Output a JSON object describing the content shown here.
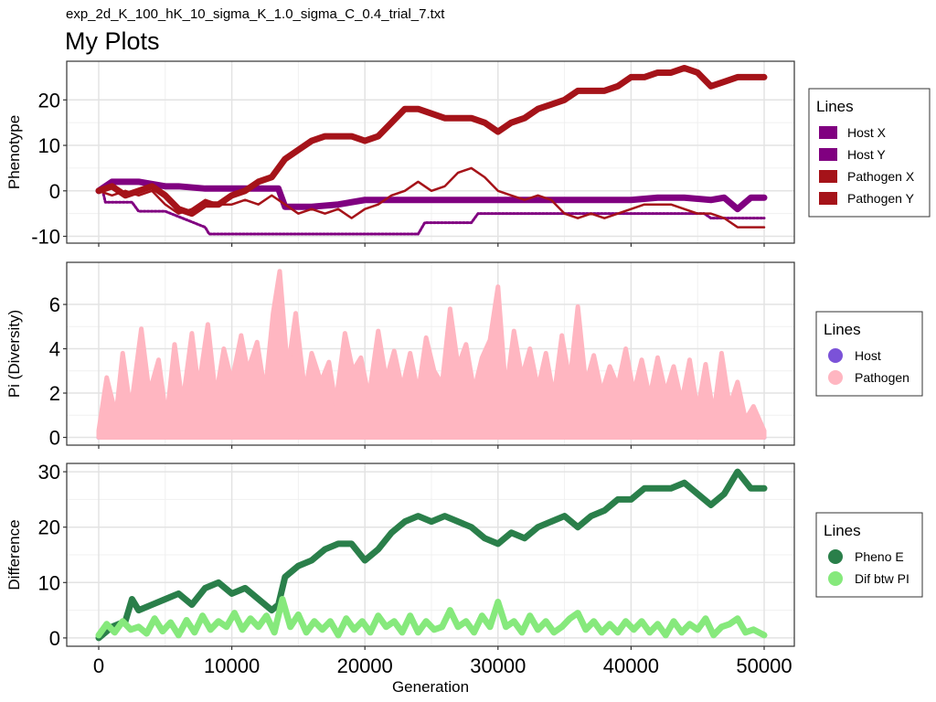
{
  "figure": {
    "subtitle": "exp_2d_K_100_hK_10_sigma_K_1.0_sigma_C_0.4_trial_7.txt",
    "title": "My Plots",
    "xlabel": "Generation"
  },
  "chart_data": [
    {
      "type": "line",
      "ylabel": "Phenotype",
      "x_range": [
        0,
        50000
      ],
      "ylim": [
        -11.5,
        28.5
      ],
      "x_ticks": [
        0,
        10000,
        20000,
        30000,
        40000,
        50000
      ],
      "y_ticks": [
        -10,
        0,
        10,
        20
      ],
      "y_tick_labels": [
        "-10",
        "0",
        "10",
        "20"
      ],
      "legend": {
        "title": "Lines",
        "position": "right",
        "marker": "square"
      },
      "series": [
        {
          "name": "Host X",
          "color": "#800080",
          "style": "thick",
          "x": [
            0,
            1000,
            3000,
            5000,
            6000,
            8000,
            10000,
            12000,
            13500,
            14000,
            16000,
            18000,
            20000,
            22000,
            25000,
            28000,
            30000,
            32000,
            35000,
            38000,
            40000,
            42000,
            44000,
            46000,
            47000,
            48000,
            49000,
            50000
          ],
          "y": [
            0,
            2,
            2,
            1,
            1,
            0.5,
            0.5,
            0.5,
            0.5,
            -3.5,
            -3.5,
            -3,
            -2,
            -2,
            -2,
            -2,
            -2,
            -2,
            -2,
            -2,
            -2,
            -1.5,
            -1.5,
            -2,
            -1.5,
            -4,
            -1.5,
            -1.5
          ]
        },
        {
          "name": "Host Y",
          "color": "#800080",
          "style": "dotted",
          "x": [
            0,
            300,
            500,
            2500,
            3000,
            5000,
            8000,
            8300,
            10000,
            14000,
            20000,
            24000,
            24500,
            28000,
            28500,
            32000,
            36000,
            40000,
            44000,
            45500,
            46000,
            50000
          ],
          "y": [
            0,
            0,
            -2.5,
            -2.5,
            -4.5,
            -4.5,
            -8,
            -9.5,
            -9.5,
            -9.5,
            -9.5,
            -9.5,
            -7,
            -7,
            -5,
            -5,
            -5,
            -5,
            -5,
            -5,
            -6,
            -6
          ]
        },
        {
          "name": "Pathogen X",
          "color": "#a51319",
          "style": "thick",
          "x": [
            0,
            1000,
            2000,
            3000,
            4000,
            5000,
            6000,
            7000,
            8000,
            9000,
            10000,
            11000,
            12000,
            13000,
            14000,
            15000,
            16000,
            17000,
            18000,
            19000,
            20000,
            21000,
            22000,
            23000,
            24000,
            25000,
            26000,
            27000,
            28000,
            29000,
            30000,
            31000,
            32000,
            33000,
            34000,
            35000,
            36000,
            37000,
            38000,
            39000,
            40000,
            41000,
            42000,
            43000,
            44000,
            45000,
            46000,
            47000,
            48000,
            49000,
            50000
          ],
          "y": [
            0,
            1,
            -1,
            0,
            1,
            -1,
            -4,
            -5,
            -3,
            -3,
            -1,
            0,
            2,
            3,
            7,
            9,
            11,
            12,
            12,
            12,
            11,
            12,
            15,
            18,
            18,
            17,
            16,
            16,
            16,
            15,
            13,
            15,
            16,
            18,
            19,
            20,
            22,
            22,
            22,
            23,
            25,
            25,
            26,
            26,
            27,
            26,
            23,
            24,
            25,
            25,
            25
          ]
        },
        {
          "name": "Pathogen Y",
          "color": "#a51319",
          "style": "thin",
          "x": [
            0,
            1000,
            2000,
            3000,
            4000,
            5000,
            6000,
            7000,
            8000,
            9000,
            10000,
            11000,
            12000,
            13000,
            14000,
            15000,
            16000,
            17000,
            18000,
            19000,
            20000,
            21000,
            22000,
            23000,
            24000,
            25000,
            26000,
            27000,
            28000,
            29000,
            30000,
            31000,
            32000,
            33000,
            34000,
            35000,
            36000,
            37000,
            38000,
            39000,
            40000,
            41000,
            42000,
            43000,
            44000,
            45000,
            46000,
            47000,
            48000,
            49000,
            50000
          ],
          "y": [
            0,
            -1,
            0,
            -1,
            0,
            -3,
            -5,
            -4,
            -2,
            -3,
            -3,
            -2,
            -3,
            -1,
            -3,
            -5,
            -4,
            -5,
            -4,
            -6,
            -4,
            -3,
            -1,
            0,
            2,
            0,
            1,
            4,
            5,
            3,
            0,
            -1,
            -2,
            -1,
            -2,
            -5,
            -6,
            -5,
            -6,
            -5,
            -4,
            -3,
            -3,
            -3,
            -4,
            -5,
            -5,
            -6,
            -8,
            -8,
            -8
          ]
        }
      ]
    },
    {
      "type": "line",
      "ylabel": "Pi (Diversity)",
      "x_range": [
        0,
        50000
      ],
      "ylim": [
        -0.35,
        7.9
      ],
      "x_ticks": [
        0,
        10000,
        20000,
        30000,
        40000,
        50000
      ],
      "y_ticks": [
        0,
        2,
        4,
        6
      ],
      "y_tick_labels": [
        "0",
        "2",
        "4",
        "6"
      ],
      "legend": {
        "title": "Lines",
        "position": "right",
        "marker": "circle"
      },
      "series": [
        {
          "name": "Host",
          "color": "#7b52d8",
          "style": "filled",
          "x": [
            0,
            2500,
            5000,
            7500,
            10000,
            12500,
            15000,
            17500,
            20000,
            22500,
            25000,
            27500,
            30000,
            32500,
            35000,
            37500,
            40000,
            42500,
            45000,
            47500,
            50000
          ],
          "y": [
            0.2,
            0.4,
            0.35,
            0.4,
            0.4,
            0.45,
            0.35,
            0.45,
            0.4,
            0.35,
            0.45,
            0.4,
            0.45,
            0.35,
            0.35,
            0.4,
            0.35,
            0.35,
            0.4,
            0.5,
            0.15
          ]
        },
        {
          "name": "Pathogen",
          "color": "#ffb6c1",
          "style": "filled",
          "x": [
            0,
            600,
            1300,
            1800,
            2400,
            3200,
            3800,
            4500,
            5100,
            5700,
            6300,
            7000,
            7500,
            8200,
            8800,
            9400,
            10000,
            10700,
            11200,
            11900,
            12500,
            13100,
            13600,
            14200,
            14800,
            15500,
            16000,
            16700,
            17300,
            17800,
            18500,
            19100,
            19700,
            20300,
            21000,
            21600,
            22200,
            22800,
            23400,
            24000,
            24600,
            25200,
            25800,
            26400,
            27000,
            27600,
            28200,
            28800,
            29400,
            30000,
            30600,
            31200,
            31800,
            32400,
            33000,
            33600,
            34200,
            34800,
            35400,
            36000,
            36600,
            37200,
            37800,
            38400,
            39000,
            39600,
            40200,
            40800,
            41400,
            42000,
            42600,
            43200,
            43800,
            44400,
            45000,
            45600,
            46200,
            46800,
            47400,
            48000,
            48600,
            49200,
            50000
          ],
          "y": [
            0.3,
            2.7,
            1.0,
            3.8,
            1.2,
            4.9,
            2.0,
            3.5,
            0.8,
            4.2,
            1.5,
            4.7,
            2.2,
            5.1,
            1.8,
            4.0,
            2.5,
            4.6,
            3.0,
            4.3,
            2.0,
            5.6,
            7.5,
            3.0,
            5.6,
            2.0,
            3.8,
            2.5,
            3.4,
            1.5,
            4.7,
            3.0,
            3.6,
            1.8,
            4.8,
            2.6,
            3.9,
            2.2,
            3.8,
            2.0,
            4.5,
            3.0,
            2.4,
            5.8,
            3.2,
            4.2,
            2.1,
            3.6,
            4.4,
            6.8,
            2.0,
            4.8,
            2.7,
            4.0,
            2.2,
            3.8,
            1.8,
            4.6,
            2.5,
            5.9,
            2.4,
            3.7,
            2.0,
            3.2,
            2.3,
            4.0,
            2.0,
            3.5,
            1.8,
            3.6,
            2.0,
            3.2,
            1.6,
            3.5,
            1.2,
            3.3,
            1.0,
            3.8,
            1.4,
            2.5,
            0.8,
            1.4,
            0.3
          ]
        }
      ]
    },
    {
      "type": "line",
      "ylabel": "Difference",
      "xlabel": "Generation",
      "x_range": [
        0,
        50000
      ],
      "ylim": [
        -1.5,
        31.5
      ],
      "x_ticks": [
        0,
        10000,
        20000,
        30000,
        40000,
        50000
      ],
      "x_tick_labels": [
        "0",
        "10000",
        "20000",
        "30000",
        "40000",
        "50000"
      ],
      "y_ticks": [
        0,
        10,
        20,
        30
      ],
      "y_tick_labels": [
        "0",
        "10",
        "20",
        "30"
      ],
      "legend": {
        "title": "Lines",
        "position": "right",
        "marker": "circle"
      },
      "series": [
        {
          "name": "Pheno E",
          "color": "#2a7f4a",
          "style": "thick",
          "x": [
            0,
            1000,
            2000,
            2500,
            3000,
            4000,
            5000,
            6000,
            7000,
            8000,
            9000,
            10000,
            11000,
            12000,
            13000,
            13500,
            14000,
            15000,
            16000,
            17000,
            18000,
            19000,
            20000,
            21000,
            22000,
            23000,
            24000,
            25000,
            26000,
            27000,
            28000,
            29000,
            30000,
            31000,
            32000,
            33000,
            34000,
            35000,
            36000,
            37000,
            38000,
            39000,
            40000,
            41000,
            42000,
            43000,
            44000,
            45000,
            46000,
            47000,
            48000,
            49000,
            50000
          ],
          "y": [
            0,
            2,
            3,
            7,
            5,
            6,
            7,
            8,
            6,
            9,
            10,
            8,
            9,
            7,
            5,
            6,
            11,
            13,
            14,
            16,
            17,
            17,
            14,
            16,
            19,
            21,
            22,
            21,
            22,
            21,
            20,
            18,
            17,
            19,
            18,
            20,
            21,
            22,
            20,
            22,
            23,
            25,
            25,
            27,
            27,
            27,
            28,
            26,
            24,
            26,
            30,
            27,
            27
          ]
        },
        {
          "name": "Dif btw PI",
          "color": "#86e97c",
          "style": "thick",
          "x": [
            0,
            600,
            1200,
            1800,
            2400,
            3000,
            3600,
            4200,
            4800,
            5400,
            6000,
            6600,
            7200,
            7800,
            8400,
            9000,
            9600,
            10200,
            10800,
            11400,
            12000,
            12600,
            13200,
            13800,
            14400,
            15000,
            15600,
            16200,
            16800,
            17400,
            18000,
            18600,
            19200,
            19800,
            20400,
            21000,
            21600,
            22200,
            22800,
            23400,
            24000,
            24600,
            25200,
            25800,
            26400,
            27000,
            27600,
            28200,
            28800,
            29400,
            30000,
            30600,
            31200,
            31800,
            32400,
            33000,
            33600,
            34200,
            34800,
            35400,
            36000,
            36600,
            37200,
            37800,
            38400,
            39000,
            39600,
            40200,
            40800,
            41400,
            42000,
            42600,
            43200,
            43800,
            44400,
            45000,
            45600,
            46200,
            46800,
            47400,
            48000,
            48600,
            49200,
            50000
          ],
          "y": [
            0.5,
            2.5,
            1.0,
            3.0,
            1.5,
            2.0,
            0.8,
            3.5,
            1.2,
            2.8,
            0.5,
            3.2,
            1.0,
            4.0,
            1.5,
            3.0,
            2.0,
            4.5,
            1.5,
            3.5,
            2.0,
            4.0,
            1.0,
            7.0,
            2.0,
            4.2,
            1.0,
            3.0,
            1.5,
            3.0,
            0.5,
            3.5,
            1.5,
            3.0,
            1.0,
            4.0,
            2.0,
            3.0,
            1.0,
            4.0,
            1.0,
            3.0,
            1.5,
            2.0,
            5.0,
            2.0,
            3.0,
            1.0,
            4.0,
            2.0,
            6.5,
            2.0,
            3.0,
            1.0,
            4.0,
            1.5,
            3.0,
            1.0,
            2.0,
            3.5,
            4.5,
            1.5,
            3.0,
            1.0,
            2.5,
            1.0,
            3.0,
            1.5,
            3.0,
            1.0,
            2.5,
            0.5,
            3.0,
            1.0,
            2.5,
            1.5,
            3.5,
            0.5,
            2.0,
            2.5,
            3.5,
            1.0,
            1.5,
            0.5
          ]
        }
      ]
    }
  ]
}
